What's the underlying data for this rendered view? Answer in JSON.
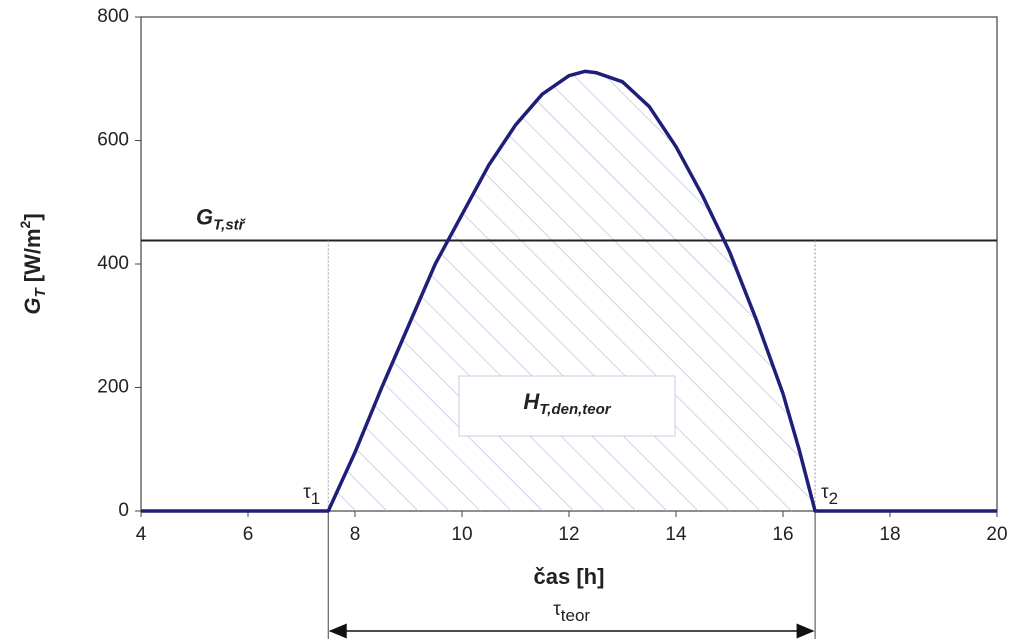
{
  "chart_data": {
    "type": "line",
    "xlabel": "čas [h]",
    "ylabel": {
      "symbol": "G",
      "sub": "T",
      "unit": " [W/m",
      "sup": "2",
      "close": "]"
    },
    "x": [
      4,
      7.5,
      8,
      8.5,
      9,
      9.5,
      10,
      10.5,
      11,
      11.5,
      12,
      12.3,
      12.5,
      13,
      13.5,
      14,
      14.5,
      15,
      15.5,
      16,
      16.3,
      16.6,
      20
    ],
    "series": [
      {
        "color": "#1f1f7a",
        "values": [
          0,
          0,
          95,
          200,
          300,
          400,
          480,
          560,
          625,
          675,
          705,
          712,
          710,
          695,
          655,
          590,
          510,
          420,
          310,
          190,
          100,
          0,
          0
        ]
      }
    ],
    "xlim": [
      4,
      20
    ],
    "xticks": [
      4,
      6,
      8,
      10,
      12,
      14,
      16,
      18,
      20
    ],
    "ylim": [
      0,
      800
    ],
    "yticks": [
      0,
      200,
      400,
      600,
      800
    ],
    "hline": {
      "value": 438,
      "symbol": "G",
      "sub": "T,stř"
    },
    "area_label": {
      "symbol": "H",
      "sub": "T,den,teor"
    },
    "markers": [
      {
        "x": 7.5,
        "symbol": "τ",
        "sub": "1"
      },
      {
        "x": 16.6,
        "symbol": "τ",
        "sub": "2"
      }
    ],
    "span_label": {
      "symbol": "τ",
      "sub": "teor"
    }
  }
}
